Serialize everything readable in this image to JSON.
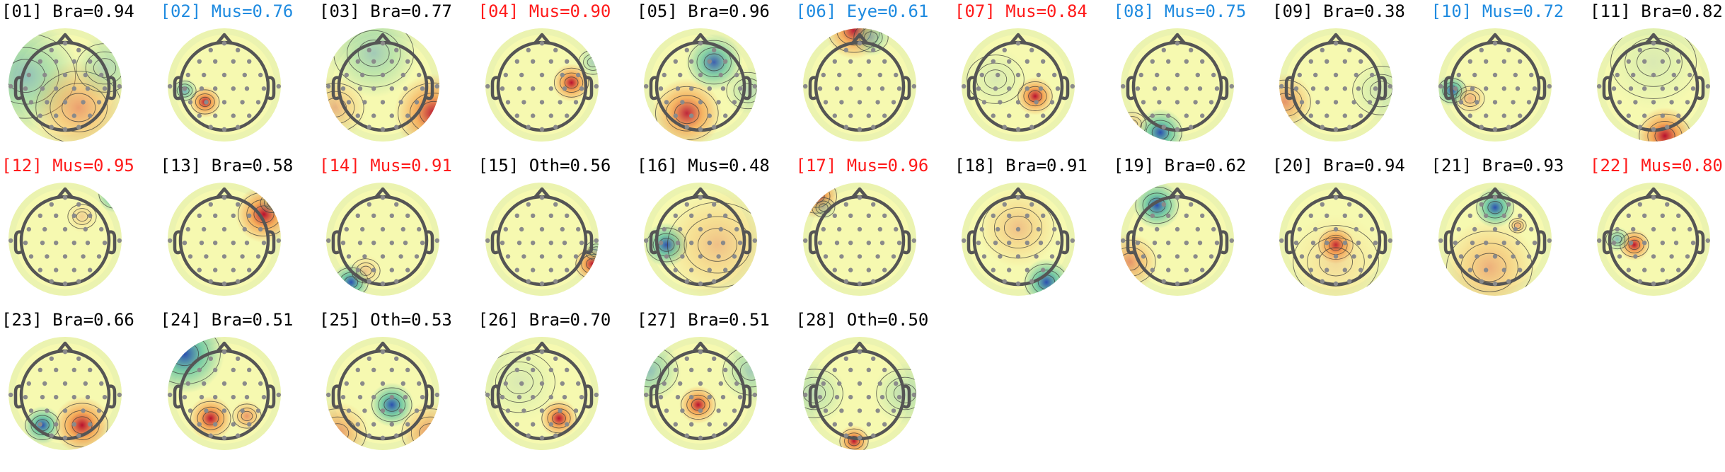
{
  "colors": {
    "Bra": "#000000",
    "Mus_high": "#ff1a1a",
    "Mus_low": "#1f8be0",
    "Eye": "#1f8be0",
    "Oth": "#000000",
    "head_outline": "#555555",
    "electrode": "#8a8a8a",
    "contour": "#3a3a3a",
    "cmap_neutral": "#f6f9b0",
    "cmap_pos": "#c2183a",
    "cmap_neg": "#2f5fb3"
  },
  "components": [
    {
      "text": "[01] Bra=0.94",
      "cls": "Bra",
      "color": "#000000",
      "blobs": [
        [
          "n",
          0.15,
          0.42,
          0.35,
          0.55
        ],
        [
          "p",
          0.62,
          0.7,
          0.3,
          0.55
        ],
        [
          "n",
          0.85,
          0.35,
          0.2,
          0.35
        ]
      ]
    },
    {
      "text": "[02] Mus=0.76",
      "cls": "Mus",
      "color": "#1f8be0",
      "blobs": [
        [
          "p",
          0.33,
          0.65,
          0.1,
          1.0
        ],
        [
          "n",
          0.15,
          0.55,
          0.08,
          0.7
        ]
      ]
    },
    {
      "text": "[03] Bra=0.77",
      "cls": "Bra",
      "color": "#000000",
      "blobs": [
        [
          "n",
          0.42,
          0.22,
          0.28,
          0.45
        ],
        [
          "p",
          0.95,
          0.75,
          0.25,
          0.95
        ],
        [
          "p",
          0.08,
          0.7,
          0.2,
          0.4
        ]
      ]
    },
    {
      "text": "[04] Mus=0.90",
      "cls": "Mus",
      "color": "#ff1a1a",
      "blobs": [
        [
          "p",
          0.76,
          0.48,
          0.12,
          1.0
        ],
        [
          "n",
          0.95,
          0.3,
          0.1,
          0.35
        ]
      ]
    },
    {
      "text": "[05] Bra=0.96",
      "cls": "Bra",
      "color": "#000000",
      "blobs": [
        [
          "n",
          0.62,
          0.3,
          0.18,
          0.9
        ],
        [
          "p",
          0.38,
          0.75,
          0.22,
          0.9
        ],
        [
          "n",
          0.92,
          0.55,
          0.15,
          0.3
        ]
      ]
    },
    {
      "text": "[06] Eye=0.61",
      "cls": "Eye",
      "color": "#1f8be0",
      "blobs": [
        [
          "p",
          0.45,
          0.02,
          0.18,
          0.95
        ],
        [
          "n",
          0.6,
          0.08,
          0.12,
          0.5
        ]
      ]
    },
    {
      "text": "[07] Mus=0.84",
      "cls": "Mus",
      "color": "#ff1a1a",
      "blobs": [
        [
          "p",
          0.65,
          0.6,
          0.12,
          1.0
        ],
        [
          "n",
          0.3,
          0.45,
          0.2,
          0.15
        ]
      ]
    },
    {
      "text": "[08] Mus=0.75",
      "cls": "Mus",
      "color": "#1f8be0",
      "blobs": [
        [
          "n",
          0.35,
          0.92,
          0.15,
          1.0
        ],
        [
          "p",
          0.1,
          0.85,
          0.1,
          0.3
        ]
      ]
    },
    {
      "text": "[09] Bra=0.38",
      "cls": "Bra",
      "color": "#000000",
      "blobs": [
        [
          "p",
          0.05,
          0.65,
          0.18,
          0.6
        ],
        [
          "n",
          0.9,
          0.55,
          0.2,
          0.2
        ]
      ]
    },
    {
      "text": "[10] Mus=0.72",
      "cls": "Mus",
      "color": "#1f8be0",
      "blobs": [
        [
          "n",
          0.12,
          0.55,
          0.1,
          1.0
        ],
        [
          "p",
          0.28,
          0.62,
          0.1,
          0.45
        ]
      ]
    },
    {
      "text": "[11] Bra=0.82",
      "cls": "Bra",
      "color": "#000000",
      "blobs": [
        [
          "p",
          0.6,
          0.95,
          0.18,
          1.0
        ],
        [
          "n",
          0.5,
          0.3,
          0.3,
          0.15
        ]
      ]
    },
    {
      "text": "[12] Mus=0.95",
      "cls": "Mus",
      "color": "#ff1a1a",
      "blobs": [
        [
          "n",
          0.95,
          0.1,
          0.12,
          1.0
        ],
        [
          "p",
          0.65,
          0.3,
          0.1,
          0.25
        ]
      ]
    },
    {
      "text": "[13] Bra=0.58",
      "cls": "Bra",
      "color": "#000000",
      "blobs": [
        [
          "p",
          0.85,
          0.28,
          0.18,
          1.0
        ],
        [
          "n",
          0.92,
          0.18,
          0.08,
          0.35
        ]
      ]
    },
    {
      "text": "[14] Mus=0.91",
      "cls": "Mus",
      "color": "#ff1a1a",
      "blobs": [
        [
          "n",
          0.22,
          0.88,
          0.12,
          1.0
        ],
        [
          "p",
          0.35,
          0.78,
          0.1,
          0.3
        ]
      ]
    },
    {
      "text": "[15] Oth=0.56",
      "cls": "Oth",
      "color": "#000000",
      "blobs": [
        [
          "p",
          0.95,
          0.72,
          0.12,
          1.0
        ],
        [
          "n",
          0.98,
          0.6,
          0.08,
          0.4
        ]
      ]
    },
    {
      "text": "[16] Mus=0.48",
      "cls": "Mus",
      "color": "#000000",
      "blobs": [
        [
          "n",
          0.2,
          0.55,
          0.14,
          1.0
        ],
        [
          "p",
          0.65,
          0.55,
          0.35,
          0.35
        ]
      ]
    },
    {
      "text": "[17] Mus=0.96",
      "cls": "Mus",
      "color": "#ff1a1a",
      "blobs": [
        [
          "p",
          0.12,
          0.12,
          0.14,
          1.0
        ],
        [
          "n",
          0.18,
          0.22,
          0.08,
          0.35
        ]
      ]
    },
    {
      "text": "[18] Bra=0.91",
      "cls": "Bra",
      "color": "#000000",
      "blobs": [
        [
          "n",
          0.75,
          0.88,
          0.15,
          1.0
        ],
        [
          "p",
          0.5,
          0.4,
          0.25,
          0.35
        ]
      ]
    },
    {
      "text": "[19] Bra=0.62",
      "cls": "Bra",
      "color": "#000000",
      "blobs": [
        [
          "n",
          0.32,
          0.2,
          0.15,
          1.0
        ],
        [
          "p",
          0.08,
          0.7,
          0.18,
          0.6
        ]
      ]
    },
    {
      "text": "[20] Bra=0.94",
      "cls": "Bra",
      "color": "#000000",
      "blobs": [
        [
          "p",
          0.5,
          0.55,
          0.12,
          1.0
        ],
        [
          "p",
          0.5,
          0.7,
          0.3,
          0.2
        ]
      ]
    },
    {
      "text": "[21] Bra=0.93",
      "cls": "Bra",
      "color": "#000000",
      "blobs": [
        [
          "n",
          0.5,
          0.22,
          0.13,
          1.0
        ],
        [
          "p",
          0.45,
          0.75,
          0.3,
          0.45
        ],
        [
          "p",
          0.7,
          0.38,
          0.06,
          0.5
        ]
      ]
    },
    {
      "text": "[22] Mus=0.80",
      "cls": "Mus",
      "color": "#ff1a1a",
      "blobs": [
        [
          "p",
          0.33,
          0.55,
          0.1,
          1.0
        ],
        [
          "n",
          0.18,
          0.5,
          0.08,
          0.6
        ]
      ]
    },
    {
      "text": "[23] Bra=0.66",
      "cls": "Bra",
      "color": "#000000",
      "blobs": [
        [
          "n",
          0.3,
          0.78,
          0.12,
          1.0
        ],
        [
          "p",
          0.65,
          0.78,
          0.18,
          1.0
        ]
      ]
    },
    {
      "text": "[24] Bra=0.51",
      "cls": "Bra",
      "color": "#000000",
      "blobs": [
        [
          "n",
          0.15,
          0.15,
          0.25,
          1.0
        ],
        [
          "p",
          0.38,
          0.72,
          0.14,
          1.0
        ],
        [
          "p",
          0.7,
          0.7,
          0.1,
          0.6
        ]
      ]
    },
    {
      "text": "[25] Oth=0.53",
      "cls": "Oth",
      "color": "#000000",
      "blobs": [
        [
          "n",
          0.58,
          0.6,
          0.14,
          1.0
        ],
        [
          "p",
          0.1,
          0.85,
          0.2,
          0.6
        ],
        [
          "p",
          0.92,
          0.85,
          0.2,
          0.6
        ]
      ]
    },
    {
      "text": "[26] Bra=0.70",
      "cls": "Bra",
      "color": "#000000",
      "blobs": [
        [
          "p",
          0.65,
          0.72,
          0.12,
          1.0
        ],
        [
          "n",
          0.3,
          0.4,
          0.25,
          0.15
        ]
      ]
    },
    {
      "text": "[27] Bra=0.51",
      "cls": "Bra",
      "color": "#000000",
      "blobs": [
        [
          "p",
          0.48,
          0.6,
          0.12,
          1.0
        ],
        [
          "n",
          0.05,
          0.3,
          0.2,
          0.5
        ],
        [
          "n",
          0.95,
          0.3,
          0.2,
          0.4
        ]
      ]
    },
    {
      "text": "[28] Oth=0.50",
      "cls": "Oth",
      "color": "#000000",
      "blobs": [
        [
          "p",
          0.45,
          0.92,
          0.1,
          1.0
        ],
        [
          "n",
          0.1,
          0.5,
          0.2,
          0.3
        ],
        [
          "n",
          0.9,
          0.5,
          0.2,
          0.3
        ]
      ]
    }
  ]
}
